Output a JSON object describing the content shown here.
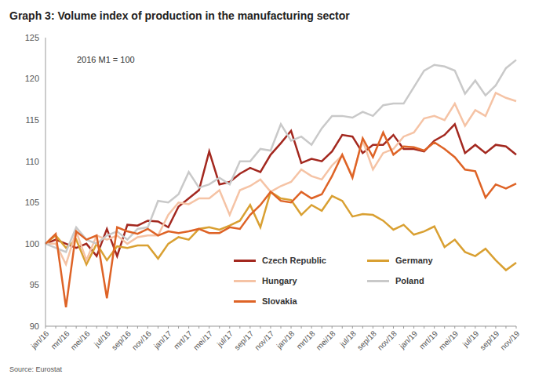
{
  "chart_data": {
    "type": "line",
    "title": "Graph 3: Volume index of production in the manufacturing sector",
    "annotation": "2016 M1 = 100",
    "source": "Source: Eurostat",
    "categories": [
      "jan/16",
      null,
      "mrt/16",
      null,
      "mei/16",
      null,
      "jul/16",
      null,
      "sep/16",
      null,
      "nov/16",
      null,
      "jan/17",
      null,
      "mrt/17",
      null,
      "mei/17",
      null,
      "jul/17",
      null,
      "sep/17",
      null,
      "nov/17",
      null,
      "jan/18",
      null,
      "mrt/18",
      null,
      "mei/18",
      null,
      "jul/18",
      null,
      "sep/18",
      null,
      "nov/18",
      null,
      "jan/19",
      null,
      "mrt/19",
      null,
      "mei/19",
      null,
      "jul/19",
      null,
      "sep/19",
      null,
      "nov/19"
    ],
    "series": [
      {
        "name": "Czech Republic",
        "color": "#a3281f",
        "values": [
          100,
          100.5,
          100,
          99.5,
          100,
          98.5,
          101.8,
          98.5,
          102.3,
          102.2,
          102.8,
          102.7,
          102,
          104.5,
          105.5,
          106.5,
          111.2,
          107.2,
          107.5,
          108.5,
          109.2,
          108.7,
          110.8,
          112.2,
          113.7,
          109.8,
          110.3,
          110,
          111.2,
          113.2,
          113,
          111,
          112,
          112,
          113.2,
          111.5,
          111.5,
          111.2,
          112.5,
          113.2,
          114.5,
          111,
          112,
          111,
          112,
          111.8,
          110.8
        ]
      },
      {
        "name": "Germany",
        "color": "#d9a032",
        "values": [
          100,
          101,
          99.5,
          100.5,
          97.5,
          100,
          98,
          99.7,
          99.5,
          99.8,
          99.8,
          98.2,
          100,
          100.8,
          100.5,
          101.8,
          102,
          101.7,
          102.2,
          102.8,
          104.7,
          102,
          106.3,
          105.5,
          105.3,
          103.5,
          104.7,
          104,
          105.8,
          105.2,
          103.3,
          103.6,
          103.5,
          102.8,
          101.7,
          102.3,
          101.1,
          101.5,
          102.1,
          99.6,
          100.5,
          99,
          98.5,
          99.4,
          98,
          96.8,
          97.7
        ]
      },
      {
        "name": "Hungary",
        "color": "#f5c3a5",
        "values": [
          100,
          100,
          97.5,
          101.5,
          98,
          101,
          100.5,
          101,
          100,
          100.8,
          101,
          101,
          103.5,
          105,
          104.8,
          105.5,
          105.5,
          106.5,
          103.5,
          106.5,
          107,
          107.8,
          106.3,
          107,
          107.5,
          109,
          108.2,
          107.8,
          109.5,
          110.7,
          108.2,
          112.5,
          109,
          111,
          111.5,
          113,
          113.5,
          115.2,
          115.5,
          115,
          117,
          114.3,
          116.2,
          115.5,
          118.3,
          117.7,
          117.3
        ]
      },
      {
        "name": "Poland",
        "color": "#c9c9c9",
        "values": [
          100,
          99.5,
          99,
          102,
          100.5,
          100,
          101,
          101.5,
          100.5,
          101.8,
          102,
          105.2,
          105,
          106,
          108.7,
          106.8,
          107.2,
          108,
          107.2,
          110,
          110,
          111.5,
          111.3,
          114.5,
          112.5,
          113,
          112,
          114,
          115.5,
          115.5,
          115.3,
          116,
          115.5,
          116.8,
          117,
          117,
          119,
          121,
          121.7,
          121.5,
          121,
          118.2,
          119.8,
          118,
          119.2,
          121.3,
          122.3
        ]
      },
      {
        "name": "Slovakia",
        "color": "#de6326",
        "values": [
          100,
          101.2,
          92.3,
          101.5,
          100.5,
          101,
          93.4,
          102,
          101.5,
          101.2,
          101.8,
          101,
          101.5,
          101.3,
          101.5,
          101.8,
          101.3,
          101.3,
          102,
          101.8,
          103.5,
          104.7,
          106.3,
          105.2,
          105,
          106.3,
          105.5,
          106,
          108.2,
          110.8,
          108,
          112.8,
          110.5,
          113.5,
          110.8,
          111.8,
          111.7,
          111.3,
          112.3,
          111.5,
          110.5,
          109,
          108.8,
          105.6,
          107.2,
          106.7,
          107.3
        ]
      }
    ],
    "ylim": [
      90,
      125
    ],
    "yticks": [
      90,
      95,
      100,
      105,
      110,
      115,
      120,
      125
    ],
    "grid": false,
    "legend": "bottom"
  }
}
